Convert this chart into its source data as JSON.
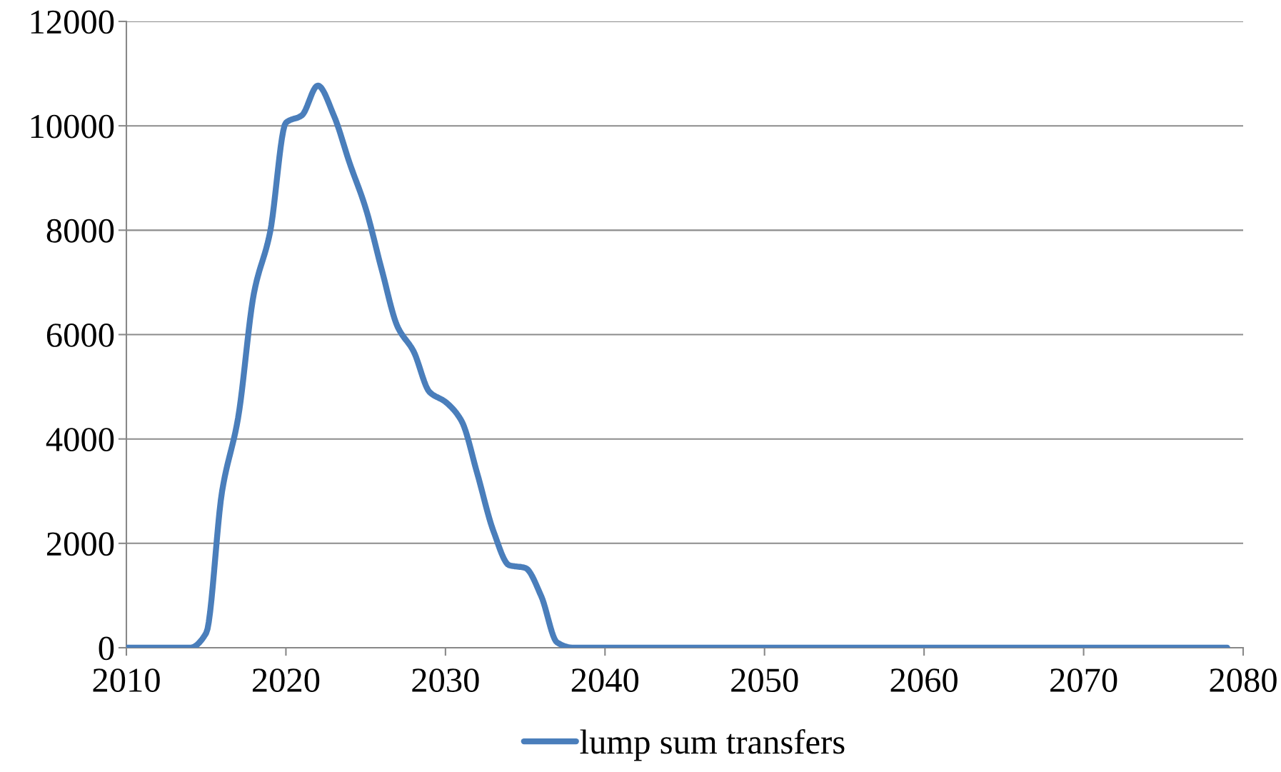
{
  "chart_data": {
    "type": "line",
    "x": [
      2010,
      2011,
      2012,
      2013,
      2014,
      2015,
      2016,
      2017,
      2018,
      2019,
      2020,
      2021,
      2022,
      2023,
      2024,
      2025,
      2026,
      2027,
      2028,
      2029,
      2030,
      2031,
      2032,
      2033,
      2034,
      2035,
      2036,
      2037,
      2038,
      2039,
      2040,
      2041,
      2042,
      2043,
      2044,
      2045,
      2046,
      2047,
      2048,
      2049,
      2050,
      2051,
      2052,
      2053,
      2054,
      2055,
      2056,
      2057,
      2058,
      2059,
      2060,
      2061,
      2062,
      2063,
      2064,
      2065,
      2066,
      2067,
      2068,
      2069,
      2070,
      2071,
      2072,
      2073,
      2074,
      2075,
      2076,
      2077,
      2078,
      2079
    ],
    "series": [
      {
        "name": "lump sum transfers",
        "color": "#4a7ebb",
        "values": [
          0,
          0,
          0,
          0,
          0,
          280,
          3000,
          4400,
          6800,
          7950,
          10060,
          10200,
          10770,
          10200,
          9280,
          8420,
          7250,
          6150,
          5680,
          4900,
          4710,
          4350,
          3330,
          2240,
          1580,
          1530,
          990,
          100,
          0,
          0,
          0,
          0,
          0,
          0,
          0,
          0,
          0,
          0,
          0,
          0,
          0,
          0,
          0,
          0,
          0,
          0,
          0,
          0,
          0,
          0,
          0,
          0,
          0,
          0,
          0,
          0,
          0,
          0,
          0,
          0,
          0,
          0,
          0,
          0,
          0,
          0,
          0,
          0,
          0,
          0
        ]
      }
    ],
    "xlim": [
      2010,
      2080
    ],
    "xticks": [
      2010,
      2020,
      2030,
      2040,
      2050,
      2060,
      2070,
      2080
    ],
    "ylim": [
      0,
      12000
    ],
    "yticks": [
      0,
      2000,
      4000,
      6000,
      8000,
      10000,
      12000
    ],
    "grid": "y",
    "legend": "bottom",
    "marker": "none",
    "line_style": "solid"
  }
}
